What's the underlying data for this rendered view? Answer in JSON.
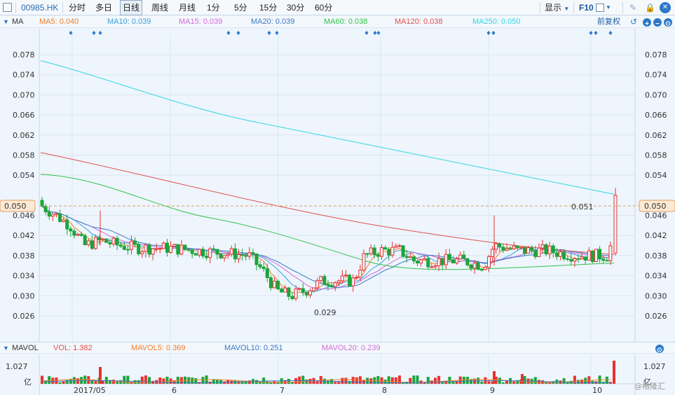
{
  "toolbar": {
    "code": "00985.HK",
    "periods": [
      "分时",
      "多日",
      "日线",
      "周线",
      "月线",
      "1分",
      "5分",
      "15分",
      "30分",
      "60分"
    ],
    "active_period": "日线",
    "display_label": "显示",
    "f10_label": "F10"
  },
  "ma_bar": {
    "label": "MA",
    "items": [
      {
        "text": "MA5: 0.040",
        "color": "#f07f2c"
      },
      {
        "text": "MA10: 0.039",
        "color": "#3aa0e0"
      },
      {
        "text": "MA15: 0.039",
        "color": "#d36bd6"
      },
      {
        "text": "MA20: 0.039",
        "color": "#3a78c8"
      },
      {
        "text": "MA60: 0.038",
        "color": "#34c24a"
      },
      {
        "text": "MA120: 0.038",
        "color": "#e05050"
      },
      {
        "text": "MA250: 0.050",
        "color": "#31d6e2"
      }
    ],
    "adjust_label": "前复权"
  },
  "price_axis": {
    "ticks": [
      "0.078",
      "0.074",
      "0.070",
      "0.066",
      "0.062",
      "0.058",
      "0.054",
      "0.046",
      "0.042",
      "0.038",
      "0.034",
      "0.030",
      "0.026"
    ],
    "current": "0.050",
    "last_label": "0.051",
    "low_label": "0.029"
  },
  "vol_bar": {
    "label": "MAVOL",
    "items": [
      {
        "text": "VOL: 1.382",
        "color": "#e05050"
      },
      {
        "text": "MAVOL5: 0.369",
        "color": "#f07f2c"
      },
      {
        "text": "MAVOL10: 0.251",
        "color": "#3a78c8"
      },
      {
        "text": "MAVOL20: 0.239",
        "color": "#d36bd6"
      }
    ],
    "axis_value": "1.027",
    "unit": "亿"
  },
  "time_axis": [
    "2017/05",
    "6",
    "7",
    "8",
    "9",
    "10"
  ],
  "watermark": "@格隆汇"
}
